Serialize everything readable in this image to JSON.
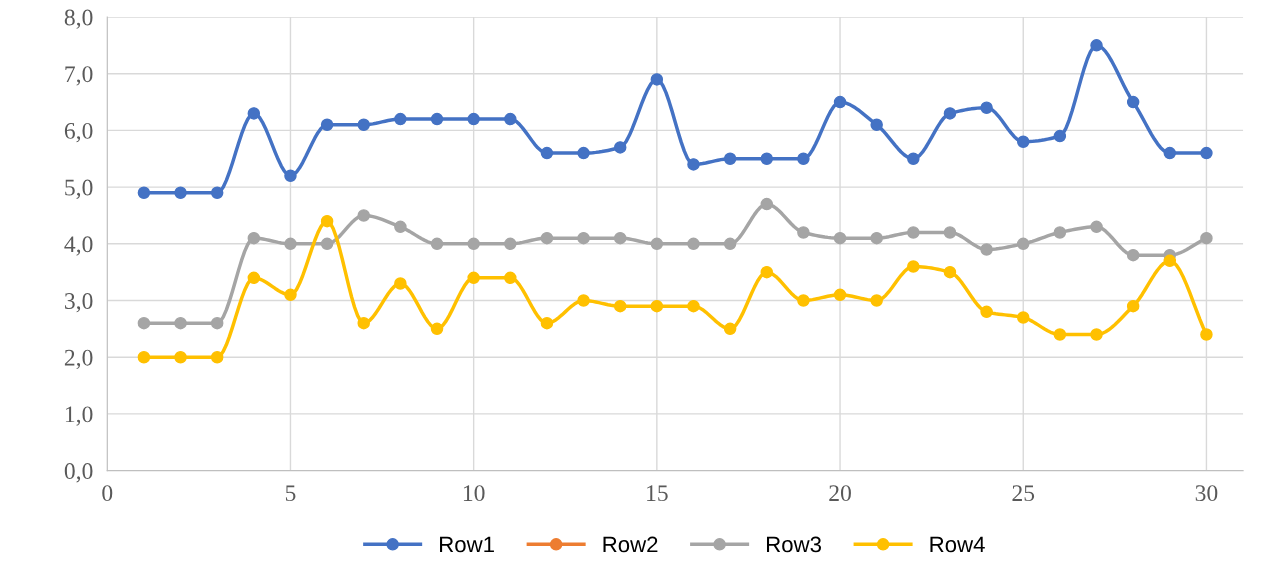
{
  "chart_data": {
    "type": "line",
    "x": [
      1,
      2,
      3,
      4,
      5,
      6,
      7,
      8,
      9,
      10,
      11,
      12,
      13,
      14,
      15,
      16,
      17,
      18,
      19,
      20,
      21,
      22,
      23,
      24,
      25,
      26,
      27,
      28,
      29,
      30
    ],
    "series": [
      {
        "name": "Row1",
        "color": "#4472c4",
        "values": [
          4.9,
          4.9,
          4.9,
          6.3,
          5.2,
          6.1,
          6.1,
          6.2,
          6.2,
          6.2,
          6.2,
          5.6,
          5.6,
          5.7,
          6.9,
          5.4,
          5.5,
          5.5,
          5.5,
          6.5,
          6.1,
          5.5,
          6.3,
          6.4,
          5.8,
          5.9,
          7.5,
          6.5,
          5.6,
          5.6
        ]
      },
      {
        "name": "Row2",
        "color": "#ed7d31",
        "values": [
          null,
          null,
          null,
          null,
          null,
          null,
          null,
          null,
          null,
          null,
          null,
          null,
          null,
          null,
          null,
          null,
          null,
          null,
          null,
          null,
          null,
          null,
          null,
          null,
          null,
          null,
          null,
          null,
          null,
          null
        ]
      },
      {
        "name": "Row3",
        "color": "#a5a5a5",
        "values": [
          2.6,
          2.6,
          2.6,
          4.1,
          4.0,
          4.0,
          4.5,
          4.3,
          4.0,
          4.0,
          4.0,
          4.1,
          4.1,
          4.1,
          4.0,
          4.0,
          4.0,
          4.7,
          4.2,
          4.1,
          4.1,
          4.2,
          4.2,
          3.9,
          4.0,
          4.2,
          4.3,
          3.8,
          3.8,
          4.1
        ]
      },
      {
        "name": "Row4",
        "color": "#ffc000",
        "values": [
          2.0,
          2.0,
          2.0,
          3.4,
          3.1,
          4.4,
          2.6,
          3.3,
          2.5,
          3.4,
          3.4,
          2.6,
          3.0,
          2.9,
          2.9,
          2.9,
          2.5,
          3.5,
          3.0,
          3.1,
          3.0,
          3.6,
          3.5,
          2.8,
          2.7,
          2.4,
          2.4,
          2.9,
          3.7,
          2.4
        ]
      }
    ],
    "xlim": [
      0,
      31
    ],
    "xticks": [
      0,
      5,
      10,
      15,
      20,
      25,
      30
    ],
    "ylim": [
      0,
      8
    ],
    "yticks": [
      {
        "value": 0,
        "label": "0,0"
      },
      {
        "value": 1,
        "label": "1,0"
      },
      {
        "value": 2,
        "label": "2,0"
      },
      {
        "value": 3,
        "label": "3,0"
      },
      {
        "value": 4,
        "label": "4,0"
      },
      {
        "value": 5,
        "label": "5,0"
      },
      {
        "value": 6,
        "label": "6,0"
      },
      {
        "value": 7,
        "label": "7,0"
      },
      {
        "value": 8,
        "label": "8,0"
      }
    ],
    "grid": true,
    "legend": "bottom",
    "marker": "circle",
    "line_style": "solid"
  }
}
